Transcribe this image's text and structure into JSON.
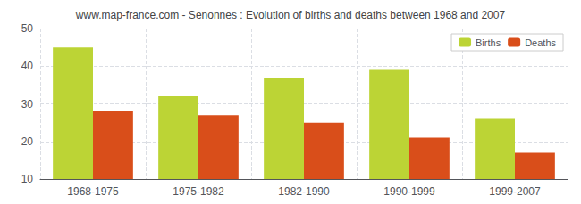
{
  "chart_data": {
    "type": "bar",
    "title": "www.map-france.com - Senonnes : Evolution of births and deaths between 1968 and 2007",
    "categories": [
      "1968-1975",
      "1975-1982",
      "1982-1990",
      "1990-1999",
      "1999-2007"
    ],
    "series": [
      {
        "name": "Births",
        "color": "#bcd435",
        "values": [
          45,
          32,
          37,
          39,
          26
        ]
      },
      {
        "name": "Deaths",
        "color": "#d94e1a",
        "values": [
          28,
          27,
          25,
          21,
          17
        ]
      }
    ],
    "ylim": [
      10,
      50
    ],
    "yticks": [
      10,
      20,
      30,
      40,
      50
    ],
    "grid": true,
    "legend": "upper right"
  }
}
